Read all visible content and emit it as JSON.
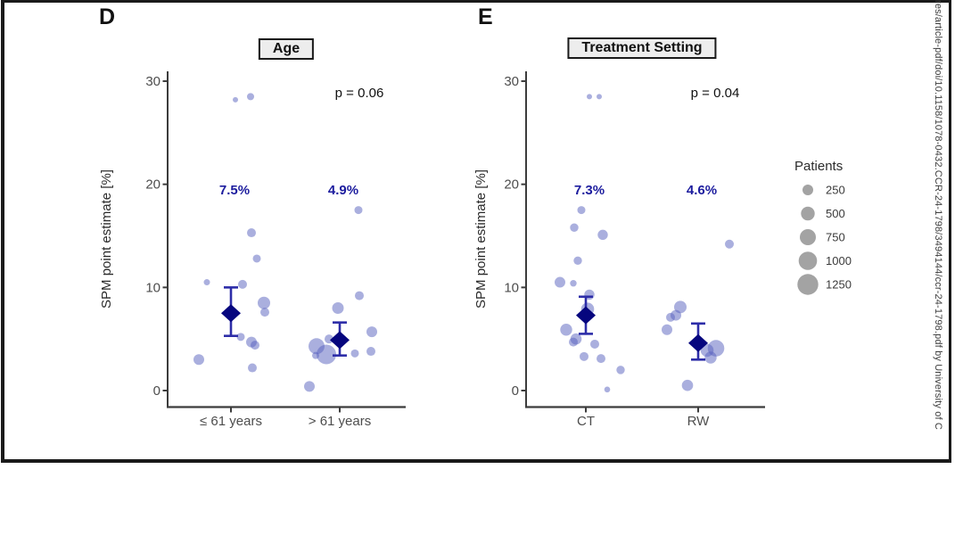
{
  "page": {
    "watermark_text": "res/article-pdf/doi/10.1158/1078-0432.CCR-24-1798/3494144/ccr-24-1798.pdf by University of C"
  },
  "legend": {
    "title": "Patients",
    "entries": [
      {
        "label": "250",
        "r": 6
      },
      {
        "label": "500",
        "r": 7.7
      },
      {
        "label": "750",
        "r": 9
      },
      {
        "label": "1000",
        "r": 10.3
      },
      {
        "label": "1250",
        "r": 11.7
      }
    ]
  },
  "colors": {
    "bubble": "#5560bd",
    "mean_diamond": "#06067e",
    "error_bar": "#2d2da8",
    "mean_label": "#1c1c9e",
    "legend_bubble": "#a3a3a3",
    "axis_text": "#4d4d4d",
    "axis_line": "#3c3c3c",
    "p_text": "#101010",
    "ylabel_text": "#2b2b2b"
  },
  "chart_data": [
    {
      "type": "scatter",
      "panel": "D",
      "title": "Age",
      "p_value_label": "p = 0.06",
      "ylabel": "SPM point estimate [%]",
      "yticks": [
        0,
        10,
        20,
        30
      ],
      "ylim": [
        -1.5,
        31
      ],
      "legend_position": "right",
      "groups": [
        {
          "label": "≤ 61 years",
          "mean_label": "7.5%",
          "mean": 7.5,
          "ci": [
            5.3,
            10.0
          ],
          "points": [
            {
              "y": 28.2,
              "dx": 5,
              "r": 3
            },
            {
              "y": 28.5,
              "dx": 22,
              "r": 4
            },
            {
              "y": 15.3,
              "dx": 23,
              "r": 5
            },
            {
              "y": 12.8,
              "dx": 29,
              "r": 4.5
            },
            {
              "y": 10.5,
              "dx": -27,
              "r": 3.5
            },
            {
              "y": 10.3,
              "dx": 13,
              "r": 5
            },
            {
              "y": 8.5,
              "dx": 37,
              "r": 7
            },
            {
              "y": 7.6,
              "dx": 38,
              "r": 5
            },
            {
              "y": 5.2,
              "dx": 11,
              "r": 4.5
            },
            {
              "y": 4.7,
              "dx": 23,
              "r": 6
            },
            {
              "y": 4.4,
              "dx": 27,
              "r": 5
            },
            {
              "y": 3.0,
              "dx": -36,
              "r": 6
            },
            {
              "y": 2.2,
              "dx": 24,
              "r": 5
            }
          ]
        },
        {
          "label": "> 61 years",
          "mean_label": "4.9%",
          "mean": 4.9,
          "ci": [
            3.4,
            6.6
          ],
          "points": [
            {
              "y": 17.5,
              "dx": 21,
              "r": 4.5
            },
            {
              "y": 9.2,
              "dx": 22,
              "r": 5
            },
            {
              "y": 8.0,
              "dx": -2,
              "r": 6.5
            },
            {
              "y": 5.7,
              "dx": 36,
              "r": 6
            },
            {
              "y": 5.0,
              "dx": -12,
              "r": 5
            },
            {
              "y": 4.3,
              "dx": -26,
              "r": 9
            },
            {
              "y": 3.5,
              "dx": -15,
              "r": 11
            },
            {
              "y": 3.4,
              "dx": -27,
              "r": 4
            },
            {
              "y": 3.6,
              "dx": 17,
              "r": 4.5
            },
            {
              "y": 3.8,
              "dx": 35,
              "r": 5
            },
            {
              "y": 0.4,
              "dx": -34,
              "r": 6
            }
          ]
        }
      ]
    },
    {
      "type": "scatter",
      "panel": "E",
      "title": "Treatment Setting",
      "p_value_label": "p = 0.04",
      "ylabel": "SPM point estimate [%]",
      "yticks": [
        0,
        10,
        20,
        30
      ],
      "ylim": [
        -1.5,
        31
      ],
      "legend_position": "right",
      "groups": [
        {
          "label": "CT",
          "mean_label": "7.3%",
          "mean": 7.3,
          "ci": [
            5.5,
            9.1
          ],
          "points": [
            {
              "y": 28.5,
              "dx": 4,
              "r": 3
            },
            {
              "y": 28.5,
              "dx": 15,
              "r": 3
            },
            {
              "y": 17.5,
              "dx": -5,
              "r": 4.5
            },
            {
              "y": 15.8,
              "dx": -13,
              "r": 4.7
            },
            {
              "y": 15.1,
              "dx": 19,
              "r": 5.7
            },
            {
              "y": 12.6,
              "dx": -9,
              "r": 4.7
            },
            {
              "y": 10.5,
              "dx": -29,
              "r": 6
            },
            {
              "y": 10.4,
              "dx": -14,
              "r": 3.7
            },
            {
              "y": 9.3,
              "dx": 4,
              "r": 5.7
            },
            {
              "y": 7.9,
              "dx": 2,
              "r": 7.3
            },
            {
              "y": 5.9,
              "dx": -22,
              "r": 6.7
            },
            {
              "y": 5.0,
              "dx": -11,
              "r": 6.3
            },
            {
              "y": 4.7,
              "dx": -14,
              "r": 5
            },
            {
              "y": 4.5,
              "dx": 10,
              "r": 5
            },
            {
              "y": 3.3,
              "dx": -2,
              "r": 5
            },
            {
              "y": 3.1,
              "dx": 17,
              "r": 5
            },
            {
              "y": 2.0,
              "dx": 39,
              "r": 4.7
            },
            {
              "y": 0.1,
              "dx": 24,
              "r": 3.3
            }
          ]
        },
        {
          "label": "RW",
          "mean_label": "4.6%",
          "mean": 4.6,
          "ci": [
            3.0,
            6.5
          ],
          "points": [
            {
              "y": 14.2,
              "dx": 35,
              "r": 5
            },
            {
              "y": 8.1,
              "dx": -20,
              "r": 7
            },
            {
              "y": 7.3,
              "dx": -25,
              "r": 6
            },
            {
              "y": 7.1,
              "dx": -31,
              "r": 5
            },
            {
              "y": 5.9,
              "dx": -35,
              "r": 6
            },
            {
              "y": 3.9,
              "dx": 10,
              "r": 7.3
            },
            {
              "y": 4.1,
              "dx": 20,
              "r": 9.3
            },
            {
              "y": 3.2,
              "dx": 14,
              "r": 6.7
            },
            {
              "y": 0.5,
              "dx": -12,
              "r": 6.3
            }
          ]
        }
      ]
    }
  ]
}
